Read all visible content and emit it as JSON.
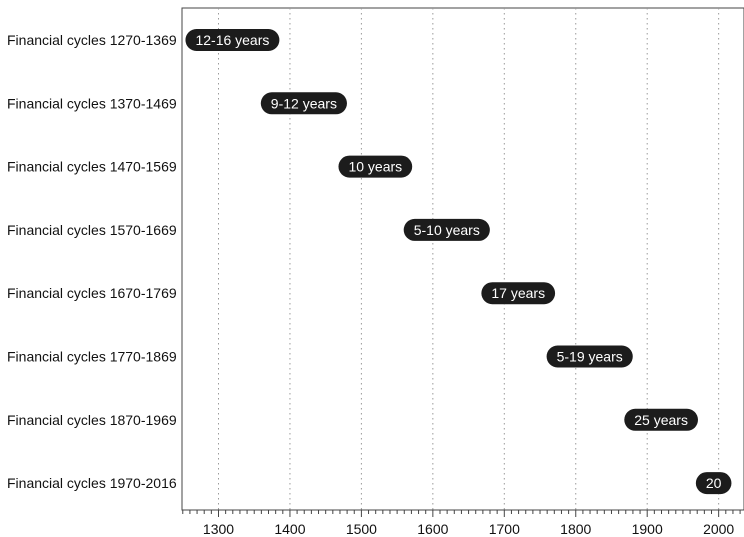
{
  "chart_data": {
    "type": "bar",
    "orientation": "horizontal",
    "style": "range-pill",
    "colors": {
      "pill": "#1c1c1c",
      "pill_text": "#ffffff",
      "grid": "#9a9a9a",
      "axis": "#444444",
      "text": "#111111"
    },
    "grid": "vertical-dotted",
    "xlim": [
      1245,
      2035
    ],
    "xticks": [
      1300,
      1400,
      1500,
      1600,
      1700,
      1800,
      1900,
      2000
    ],
    "xtick_labels": [
      "1300",
      "1400",
      "1500",
      "1600",
      "1700",
      "1800",
      "1900",
      "2000"
    ],
    "xminor_step": 10,
    "rows": [
      {
        "label": "Financial cycles 1270-1369",
        "start": 1270,
        "end": 1369,
        "value_label": "12-16 years"
      },
      {
        "label": "Financial cycles 1370-1469",
        "start": 1370,
        "end": 1469,
        "value_label": "9-12 years"
      },
      {
        "label": "Financial cycles 1470-1569",
        "start": 1470,
        "end": 1569,
        "value_label": "10 years"
      },
      {
        "label": "Financial cycles 1570-1669",
        "start": 1570,
        "end": 1669,
        "value_label": "5-10 years"
      },
      {
        "label": "Financial cycles 1670-1769",
        "start": 1670,
        "end": 1769,
        "value_label": "17 years"
      },
      {
        "label": "Financial cycles 1770-1869",
        "start": 1770,
        "end": 1869,
        "value_label": "5-19 years"
      },
      {
        "label": "Financial cycles 1870-1969",
        "start": 1870,
        "end": 1969,
        "value_label": "25 years"
      },
      {
        "label": "Financial cycles 1970-2016",
        "start": 1970,
        "end": 2016,
        "value_label": "20"
      }
    ]
  }
}
